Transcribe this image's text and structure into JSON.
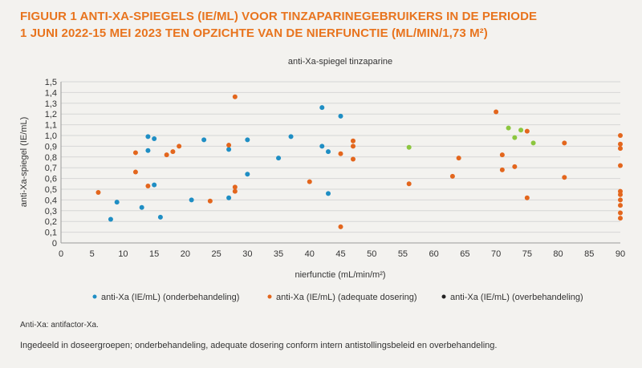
{
  "figure": {
    "title_line1": "FIGUUR 1  ANTI-XA-SPIEGELS (IE/ML) VOOR TINZAPARINEGEBRUIKERS IN DE PERIODE",
    "title_line2": "1 JUNI 2022-15 MEI 2023 TEN OPZICHTE VAN DE NIERFUNCTIE (ML/MIN/1,73 M²)",
    "abbreviation_note": "Anti-Xa: antifactor-Xa.",
    "description": "Ingedeeld in doseergroepen; onderbehandeling, adequate dosering conform intern antistollingsbeleid en overbehandeling."
  },
  "colors": {
    "title": "#e8741e",
    "under": "#1f8ec4",
    "adequate": "#e3661d",
    "over": "#222222",
    "green": "#8cc63f",
    "grid": "#d6d6d6",
    "axis": "#333333"
  },
  "chart_data": {
    "type": "scatter",
    "title": "anti-Xa-spiegel tinzaparine",
    "xlabel": "nierfunctie (mL/min/m²)",
    "ylabel": "anti-Xa-spiegel (IE/mL)",
    "xlim": [
      0,
      90
    ],
    "ylim": [
      0,
      1.5
    ],
    "x_ticks": [
      "0",
      "5",
      "10",
      "15",
      "20",
      "25",
      "30",
      "35",
      "40",
      "45",
      "50",
      "55",
      "60",
      "65",
      "70",
      "75",
      "80",
      "85",
      "90"
    ],
    "y_ticks": [
      "0",
      "0,1",
      "0,2",
      "0,3",
      "0,4",
      "0,5",
      "0,6",
      "0,7",
      "0,8",
      "0,9",
      "1,0",
      "1,1",
      "1,2",
      "1,3",
      "1,4",
      "1,5"
    ],
    "grid": "horizontal",
    "legend_position": "bottom",
    "series": [
      {
        "name": "anti-Xa (IE/mL) (onderbehandeling)",
        "color": "#1f8ec4",
        "points": [
          [
            8,
            0.22
          ],
          [
            9,
            0.38
          ],
          [
            13,
            0.33
          ],
          [
            14,
            0.99
          ],
          [
            14,
            0.86
          ],
          [
            15,
            0.97
          ],
          [
            15,
            0.54
          ],
          [
            16,
            0.24
          ],
          [
            21,
            0.4
          ],
          [
            23,
            0.96
          ],
          [
            27,
            0.87
          ],
          [
            27,
            0.42
          ],
          [
            30,
            0.96
          ],
          [
            30,
            0.64
          ],
          [
            35,
            0.79
          ],
          [
            37,
            0.99
          ],
          [
            42,
            1.26
          ],
          [
            42,
            0.9
          ],
          [
            43,
            0.85
          ],
          [
            43,
            0.46
          ],
          [
            45,
            1.18
          ]
        ]
      },
      {
        "name": "anti-Xa (IE/mL) (adequate dosering)",
        "color": "#e3661d",
        "points": [
          [
            6,
            0.47
          ],
          [
            12,
            0.84
          ],
          [
            12,
            0.66
          ],
          [
            14,
            0.53
          ],
          [
            17,
            0.82
          ],
          [
            18,
            0.85
          ],
          [
            19,
            0.9
          ],
          [
            24,
            0.39
          ],
          [
            27,
            0.91
          ],
          [
            28,
            1.36
          ],
          [
            28,
            0.52
          ],
          [
            28,
            0.48
          ],
          [
            40,
            0.57
          ],
          [
            45,
            0.83
          ],
          [
            45,
            0.15
          ],
          [
            47,
            0.95
          ],
          [
            47,
            0.9
          ],
          [
            47,
            0.78
          ],
          [
            56,
            0.55
          ],
          [
            63,
            0.62
          ],
          [
            64,
            0.79
          ],
          [
            70,
            1.22
          ],
          [
            71,
            0.82
          ],
          [
            71,
            0.68
          ],
          [
            73,
            0.71
          ],
          [
            75,
            1.04
          ],
          [
            75,
            0.42
          ],
          [
            81,
            0.93
          ],
          [
            81,
            0.61
          ],
          [
            90,
            1.0
          ],
          [
            90,
            0.92
          ],
          [
            90,
            0.88
          ],
          [
            90,
            0.72
          ],
          [
            90,
            0.48
          ],
          [
            90,
            0.45
          ],
          [
            90,
            0.4
          ],
          [
            90,
            0.35
          ],
          [
            90,
            0.28
          ],
          [
            90,
            0.23
          ]
        ]
      },
      {
        "name": "anti-Xa (IE/mL) (overbehandeling)",
        "color": "#222222",
        "points": []
      },
      {
        "name": "",
        "color": "#8cc63f",
        "show_in_legend": false,
        "points": [
          [
            56,
            0.89
          ],
          [
            72,
            1.07
          ],
          [
            73,
            0.98
          ],
          [
            74,
            1.05
          ],
          [
            76,
            0.93
          ]
        ]
      }
    ]
  }
}
